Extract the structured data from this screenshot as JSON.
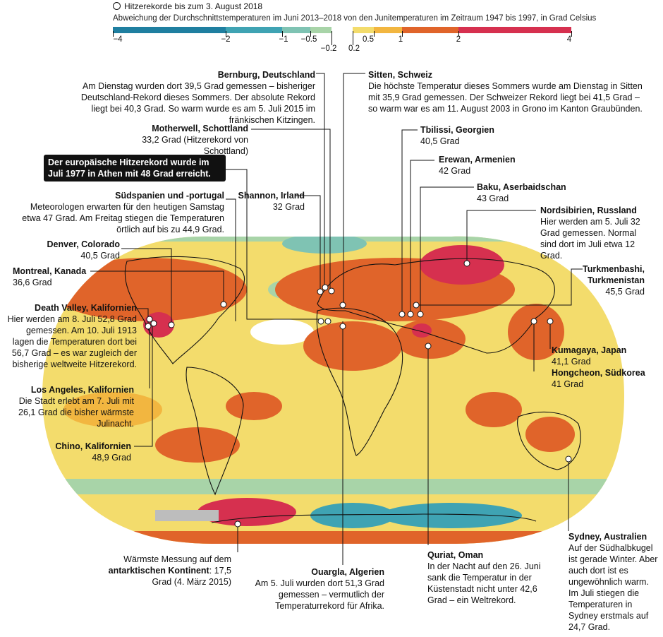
{
  "legend": {
    "marker_label": "Hitzerekorde bis zum 3. August 2018",
    "description": "Abweichung der Durchschnittstemperaturen im Juni 2013–2018 von den Junitemperaturen im Zeitraum 1947 bis 1997, in Grad Celsius",
    "ticks": [
      "−4",
      "−2",
      "−1",
      "−0.5",
      "−0.2",
      "0.2",
      "0.5",
      "1",
      "2",
      "4"
    ],
    "colors": [
      "#1f7fa0",
      "#3fa3b3",
      "#7fc3b3",
      "#a8d4a8",
      "#ffffff",
      "#f3dc6c",
      "#f2b640",
      "#e0642a",
      "#d6304f"
    ]
  },
  "record_box": "Der europäische Hitzerekord wurde im Juli 1977 in Athen mit 48 Grad erreicht.",
  "labels": {
    "bernburg": {
      "title": "Bernburg, Deutschland",
      "text": "Am Dienstag wurden dort 39,5 Grad gemessen – bisheriger Deutschland-Rekord dieses Sommers. Der absolute Rekord liegt bei 40,3 Grad. So warm wurde es am 5. Juli 2015 im fränkischen Kitzingen."
    },
    "sitten": {
      "title": "Sitten, Schweiz",
      "text": "Die höchste Temperatur dieses Sommers wurde am Dienstag in Sitten mit 35,9 Grad gemessen. Der Schweizer Rekord liegt bei 41,5 Grad – so warm war es am 11. August 2003 in Grono im Kanton Graubünden."
    },
    "motherwell": {
      "title": "Motherwell, Schottland",
      "text": "33,2 Grad (Hitzerekord von Schottland)"
    },
    "tbilisi": {
      "title": "Tbilissi, Georgien",
      "text": "40,5 Grad"
    },
    "erewan": {
      "title": "Erewan, Armenien",
      "text": "42 Grad"
    },
    "baku": {
      "title": "Baku, Aserbaidschan",
      "text": "43 Grad"
    },
    "nordsibirien": {
      "title": "Nordsibirien, Russland",
      "text": "Hier werden am 5. Juli 32 Grad gemessen. Normal sind dort im Juli etwa 12 Grad."
    },
    "suedspanien": {
      "title": "Südspanien und -portugal",
      "text": "Meteorologen erwarten für den heutigen Samstag etwa 47 Grad. Am Freitag stiegen die Temperaturen örtlich auf bis zu 44,9 Grad."
    },
    "shannon": {
      "title": "Shannon, Irland",
      "text": "32 Grad"
    },
    "denver": {
      "title": "Denver, Colorado",
      "text": "40,5 Grad"
    },
    "montreal": {
      "title": "Montreal, Kanada",
      "text": "36,6 Grad"
    },
    "turkmenbashi": {
      "title": "Turkmenbashi, Turkmenistan",
      "text": "45,5 Grad"
    },
    "deathvalley": {
      "title": "Death Valley, Kalifornien",
      "text": "Hier werden am 8. Juli 52,8 Grad gemessen. Am 10. Juli 1913 lagen die Temperaturen dort bei 56,7 Grad – es war zugleich der bisherige weltweite Hitzerekord."
    },
    "kumagaya": {
      "title": "Kumagaya, Japan",
      "text": "41,1 Grad"
    },
    "hongcheon": {
      "title": "Hongcheon, Südkorea",
      "text": "41 Grad"
    },
    "losangeles": {
      "title": "Los Angeles, Kalifornien",
      "text": "Die Stadt erlebt am 7. Juli mit 26,1 Grad die bisher wärmste Julinacht."
    },
    "chino": {
      "title": "Chino, Kalifornien",
      "text": "48,9 Grad"
    },
    "antarktis": {
      "text_a": "Wärmste Messung auf dem",
      "bold": "antarktischen Kontinent",
      "text_b": ": 17,5 Grad (4. März 2015)"
    },
    "ouargla": {
      "title": "Ouargla, Algerien",
      "text": "Am 5. Juli wurden dort 51,3 Grad gemessen – vermutlich der Temperaturrekord für Afrika."
    },
    "quriat": {
      "title": "Quriat, Oman",
      "text": "In der Nacht auf den 26. Juni sank die Temperatur in der Küstenstadt nicht unter 42,6 Grad – ein Weltrekord."
    },
    "sydney": {
      "title": "Sydney, Australien",
      "text": "Auf der Südhalbkugel ist gerade Winter. Aber auch dort ist es ungewöhnlich warm. Im Juli stiegen die Temperaturen in Sydney erstmals auf 24,7 Grad."
    }
  }
}
